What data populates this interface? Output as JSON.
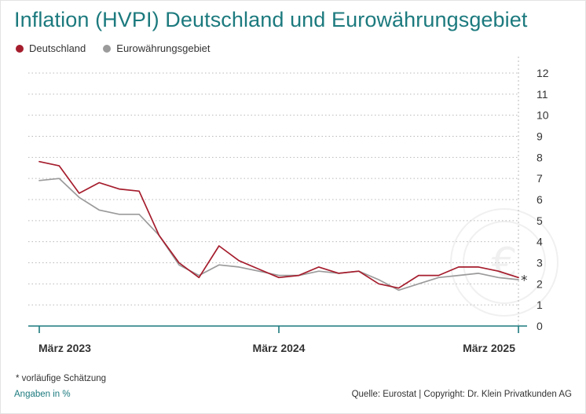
{
  "title": "Inflation (HVPI) Deutschland und Eurowährungsgebiet",
  "legend": [
    {
      "label": "Deutschland",
      "color": "#a51d2d"
    },
    {
      "label": "Eurowährungsgebiet",
      "color": "#9b9b9b"
    }
  ],
  "footnote": "* vorläufige Schätzung",
  "units": "Angaben in %",
  "source": "Quelle: Eurostat | Copyright: Dr. Klein Privatkunden AG",
  "colors": {
    "accent": "#1c7a7e",
    "grid": "#b8b8b8"
  },
  "chart_data": {
    "type": "line",
    "x": [
      "2023-03",
      "2023-04",
      "2023-05",
      "2023-06",
      "2023-07",
      "2023-08",
      "2023-09",
      "2023-10",
      "2023-11",
      "2023-12",
      "2024-01",
      "2024-02",
      "2024-03",
      "2024-04",
      "2024-05",
      "2024-06",
      "2024-07",
      "2024-08",
      "2024-09",
      "2024-10",
      "2024-11",
      "2024-12",
      "2025-01",
      "2025-02",
      "2025-03"
    ],
    "x_tick_labels": [
      {
        "index": 0,
        "label": "März 2023"
      },
      {
        "index": 12,
        "label": "März 2024"
      },
      {
        "index": 24,
        "label": "März 2025"
      }
    ],
    "series": [
      {
        "name": "Deutschland",
        "color": "#a51d2d",
        "values": [
          7.8,
          7.6,
          6.3,
          6.8,
          6.5,
          6.4,
          4.3,
          3.0,
          2.3,
          3.8,
          3.1,
          2.7,
          2.3,
          2.4,
          2.8,
          2.5,
          2.6,
          2.0,
          1.8,
          2.4,
          2.4,
          2.8,
          2.8,
          2.6,
          2.3
        ]
      },
      {
        "name": "Eurowährungsgebiet",
        "color": "#9b9b9b",
        "values": [
          6.9,
          7.0,
          6.1,
          5.5,
          5.3,
          5.3,
          4.3,
          2.9,
          2.4,
          2.9,
          2.8,
          2.6,
          2.4,
          2.4,
          2.6,
          2.5,
          2.6,
          2.2,
          1.7,
          2.0,
          2.3,
          2.4,
          2.5,
          2.3,
          2.2
        ]
      }
    ],
    "y_ticks": [
      0,
      1,
      2,
      3,
      4,
      5,
      6,
      7,
      8,
      9,
      10,
      11,
      12
    ],
    "ylim": [
      0,
      12
    ],
    "estimate_marker": "*",
    "grid": true,
    "legend_position": "top-left"
  }
}
